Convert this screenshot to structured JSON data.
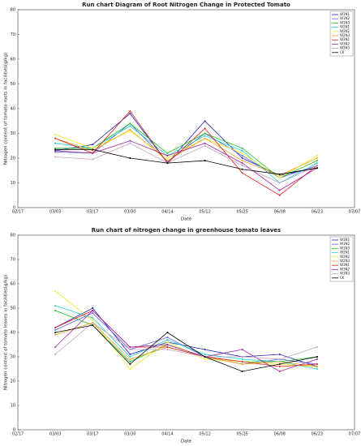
{
  "chart_data": [
    {
      "type": "line",
      "title": "Run chart Diagram of Root Nitrogen Change in Protected Tomato",
      "x_label": "Date",
      "y_label": "Nitrogen content of tomato roots in facilities(g/kg)",
      "categories": [
        "02/17",
        "03/03",
        "03/17",
        "03/30",
        "04/14",
        "05/12",
        "05/25",
        "06/08",
        "06/23",
        "07/07"
      ],
      "ylim": [
        0,
        80
      ],
      "yticks": [
        0,
        10,
        20,
        30,
        40,
        50,
        60,
        70,
        80
      ],
      "legend": "upper right",
      "series": [
        {
          "name": "W1N1",
          "color": "#2020c0",
          "values": [
            null,
            23,
            25.5,
            38,
            18,
            35,
            20,
            13,
            16,
            null
          ]
        },
        {
          "name": "W1N2",
          "color": "#6060e0",
          "values": [
            null,
            22.5,
            22,
            34,
            18.5,
            30,
            21,
            12,
            17,
            null
          ]
        },
        {
          "name": "W1N3",
          "color": "#20c020",
          "values": [
            null,
            24,
            24,
            34,
            22,
            30,
            24,
            12,
            19,
            null
          ]
        },
        {
          "name": "W2N1",
          "color": "#20d0d0",
          "values": [
            null,
            26,
            24,
            33,
            21,
            29,
            23,
            10,
            18,
            null
          ]
        },
        {
          "name": "W2N2",
          "color": "#f0f020",
          "values": [
            null,
            29.5,
            24,
            31,
            20,
            28,
            22,
            12,
            21,
            null
          ]
        },
        {
          "name": "W2N3",
          "color": "#f0a020",
          "values": [
            null,
            28,
            23,
            31.5,
            19,
            28,
            19,
            13,
            20,
            null
          ]
        },
        {
          "name": "W3N1",
          "color": "#e02020",
          "values": [
            null,
            28,
            22,
            39,
            18,
            32,
            14,
            5,
            17,
            null
          ]
        },
        {
          "name": "W3N2",
          "color": "#a020a0",
          "values": [
            null,
            23,
            22,
            27,
            21,
            26,
            18,
            7,
            16,
            null
          ]
        },
        {
          "name": "W3N3",
          "color": "#c0a0c0",
          "values": [
            null,
            20.5,
            19.5,
            26,
            18,
            25,
            17,
            10,
            17,
            null
          ]
        },
        {
          "name": "CK",
          "color": "#000000",
          "values": [
            null,
            23.5,
            23.5,
            20,
            18,
            19,
            15.5,
            13.5,
            16,
            null
          ]
        }
      ]
    },
    {
      "type": "line",
      "title": "Run chart of nitrogen change in greenhouse tomato leaves",
      "x_label": "Date",
      "y_label": "Nitrogen content of tomato leaves in facilities(g/kg)",
      "categories": [
        "02/17",
        "03/03",
        "03/17",
        "03/30",
        "04/14",
        "05/12",
        "05/25",
        "06/08",
        "06/23",
        "07/07"
      ],
      "ylim": [
        0,
        80
      ],
      "yticks": [
        0,
        10,
        20,
        30,
        40,
        50,
        60,
        70,
        80
      ],
      "legend": "upper right",
      "series": [
        {
          "name": "W1N1",
          "color": "#2020c0",
          "values": [
            null,
            42,
            50,
            31,
            36,
            33,
            30,
            31,
            26,
            null
          ]
        },
        {
          "name": "W1N2",
          "color": "#6060e0",
          "values": [
            null,
            41,
            48,
            33,
            38,
            30,
            27,
            29,
            27,
            null
          ]
        },
        {
          "name": "W1N3",
          "color": "#20c020",
          "values": [
            null,
            49,
            43,
            28,
            35,
            30,
            28,
            28,
            30,
            null
          ]
        },
        {
          "name": "W2N1",
          "color": "#20d0d0",
          "values": [
            null,
            51,
            46,
            30,
            37,
            31,
            29,
            28,
            25,
            null
          ]
        },
        {
          "name": "W2N2",
          "color": "#f0f020",
          "values": [
            null,
            57,
            45,
            25,
            36,
            29,
            28,
            27,
            26,
            null
          ]
        },
        {
          "name": "W2N3",
          "color": "#f0a020",
          "values": [
            null,
            39,
            44,
            29,
            34,
            30,
            27,
            28,
            26,
            null
          ]
        },
        {
          "name": "W3N1",
          "color": "#e02020",
          "values": [
            null,
            42,
            49,
            34,
            34,
            30,
            28,
            26,
            27,
            null
          ]
        },
        {
          "name": "W3N2",
          "color": "#a020a0",
          "values": [
            null,
            34,
            49,
            34,
            35,
            30,
            33,
            24,
            29,
            null
          ]
        },
        {
          "name": "W3N3",
          "color": "#c0a0c0",
          "values": [
            null,
            31,
            44,
            33,
            33,
            30,
            30,
            29,
            34,
            null
          ]
        },
        {
          "name": "CK",
          "color": "#000000",
          "values": [
            null,
            40,
            43,
            27,
            40,
            30,
            24,
            27,
            30,
            null
          ]
        }
      ]
    }
  ]
}
